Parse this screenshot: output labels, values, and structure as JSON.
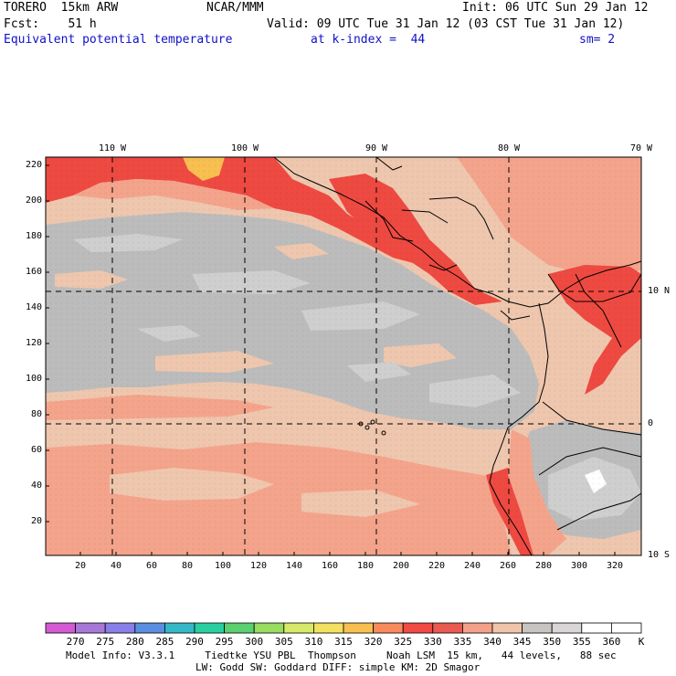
{
  "header": {
    "line1_left": "TORERO  15km ARW",
    "line1_mid": "NCAR/MMM",
    "line1_right": "Init: 06 UTC Sun 29 Jan 12",
    "line2_left": "Fcst:    51 h",
    "line2_right": "Valid: 09 UTC Tue 31 Jan 12 (03 CST Tue 31 Jan 12)",
    "line3_left": "Equivalent potential temperature",
    "line3_mid": "at k-index =  44",
    "line3_right": "sm= 2"
  },
  "axes": {
    "y_ticks": [
      "220",
      "200",
      "180",
      "160",
      "140",
      "120",
      "100",
      "80",
      "60",
      "40",
      "20"
    ],
    "x_ticks": [
      "20",
      "40",
      "60",
      "80",
      "100",
      "120",
      "140",
      "160",
      "180",
      "200",
      "220",
      "240",
      "260",
      "280",
      "300",
      "320"
    ],
    "lon_labels": [
      "110 W",
      "100 W",
      "90 W",
      "80 W",
      "70 W"
    ],
    "lat_labels": [
      "10 N",
      "0",
      "10 S"
    ]
  },
  "colorbar": {
    "labels": [
      "270",
      "275",
      "280",
      "285",
      "290",
      "295",
      "300",
      "305",
      "310",
      "315",
      "320",
      "325",
      "330",
      "335",
      "340",
      "345",
      "350",
      "355",
      "360"
    ],
    "unit": "K",
    "colors": [
      "#d45ad4",
      "#a878d8",
      "#8a7ee8",
      "#5a8ee0",
      "#34b8c8",
      "#28d0a0",
      "#5ad070",
      "#98dc60",
      "#d8e868",
      "#f4e060",
      "#f8c050",
      "#f88a5c",
      "#f24a44",
      "#ea5a50",
      "#f5a088",
      "#f0c4aa",
      "#c8c4c2",
      "#d8d6d6",
      "#ffffff",
      "#ffffff"
    ]
  },
  "field_colors": {
    "gray_dark": "#bcbcbc",
    "gray_light": "#cfcfcf",
    "peach": "#efc7ae",
    "salmon": "#f5a48c",
    "red": "#ee4a42",
    "orange": "#f8c050",
    "white": "#ffffff"
  },
  "footer": {
    "line1": "Model Info: V3.3.1     Tiedtke YSU PBL  Thompson     Noah LSM  15 km,   44 levels,   88 sec",
    "line2": "LW: Godd SW: Goddard DIFF: simple KM: 2D Smagor"
  }
}
